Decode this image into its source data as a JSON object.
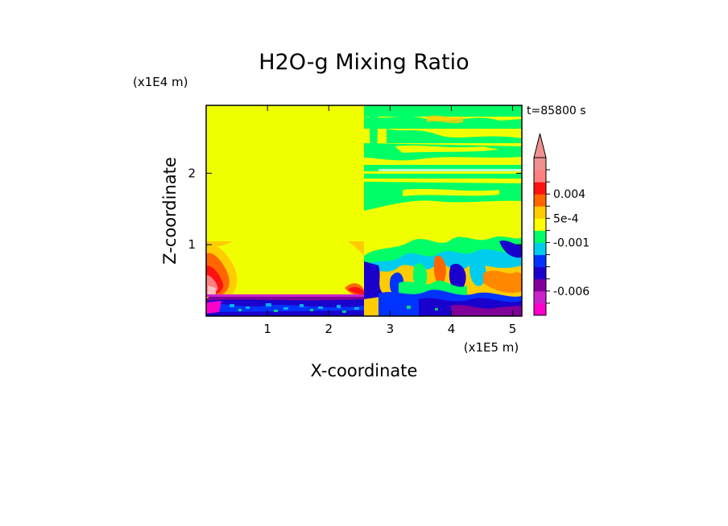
{
  "chart_data": {
    "type": "heatmap",
    "title": "H2O-g Mixing Ratio",
    "xlabel": "X-coordinate",
    "ylabel": "Z-coordinate",
    "x_unit": "(x1E5 m)",
    "y_unit": "(x1E4 m)",
    "time_label": "t=85800 s",
    "xlim": [
      0,
      5.15
    ],
    "ylim": [
      0,
      2.95
    ],
    "x_ticks": [
      1,
      2,
      3,
      4,
      5
    ],
    "y_ticks": [
      1,
      2
    ],
    "colorbar": {
      "extend": "max",
      "colors": [
        "#ff00cc",
        "#cc22cc",
        "#800099",
        "#1a00cc",
        "#0033ff",
        "#00ccee",
        "#00ff66",
        "#ffff00",
        "#ffcc00",
        "#ff6600",
        "#ff1111",
        "#ff8080",
        "#f09090"
      ],
      "labels": [
        {
          "text": "0.004",
          "value": 0.004
        },
        {
          "text": "5e-4",
          "value": 0.0005
        },
        {
          "text": "-0.001",
          "value": -0.001
        },
        {
          "text": "-0.006",
          "value": -0.006
        }
      ],
      "label_band_index": [
        10,
        8,
        6,
        2
      ]
    },
    "dominant_value_color": "#f0ff00"
  }
}
